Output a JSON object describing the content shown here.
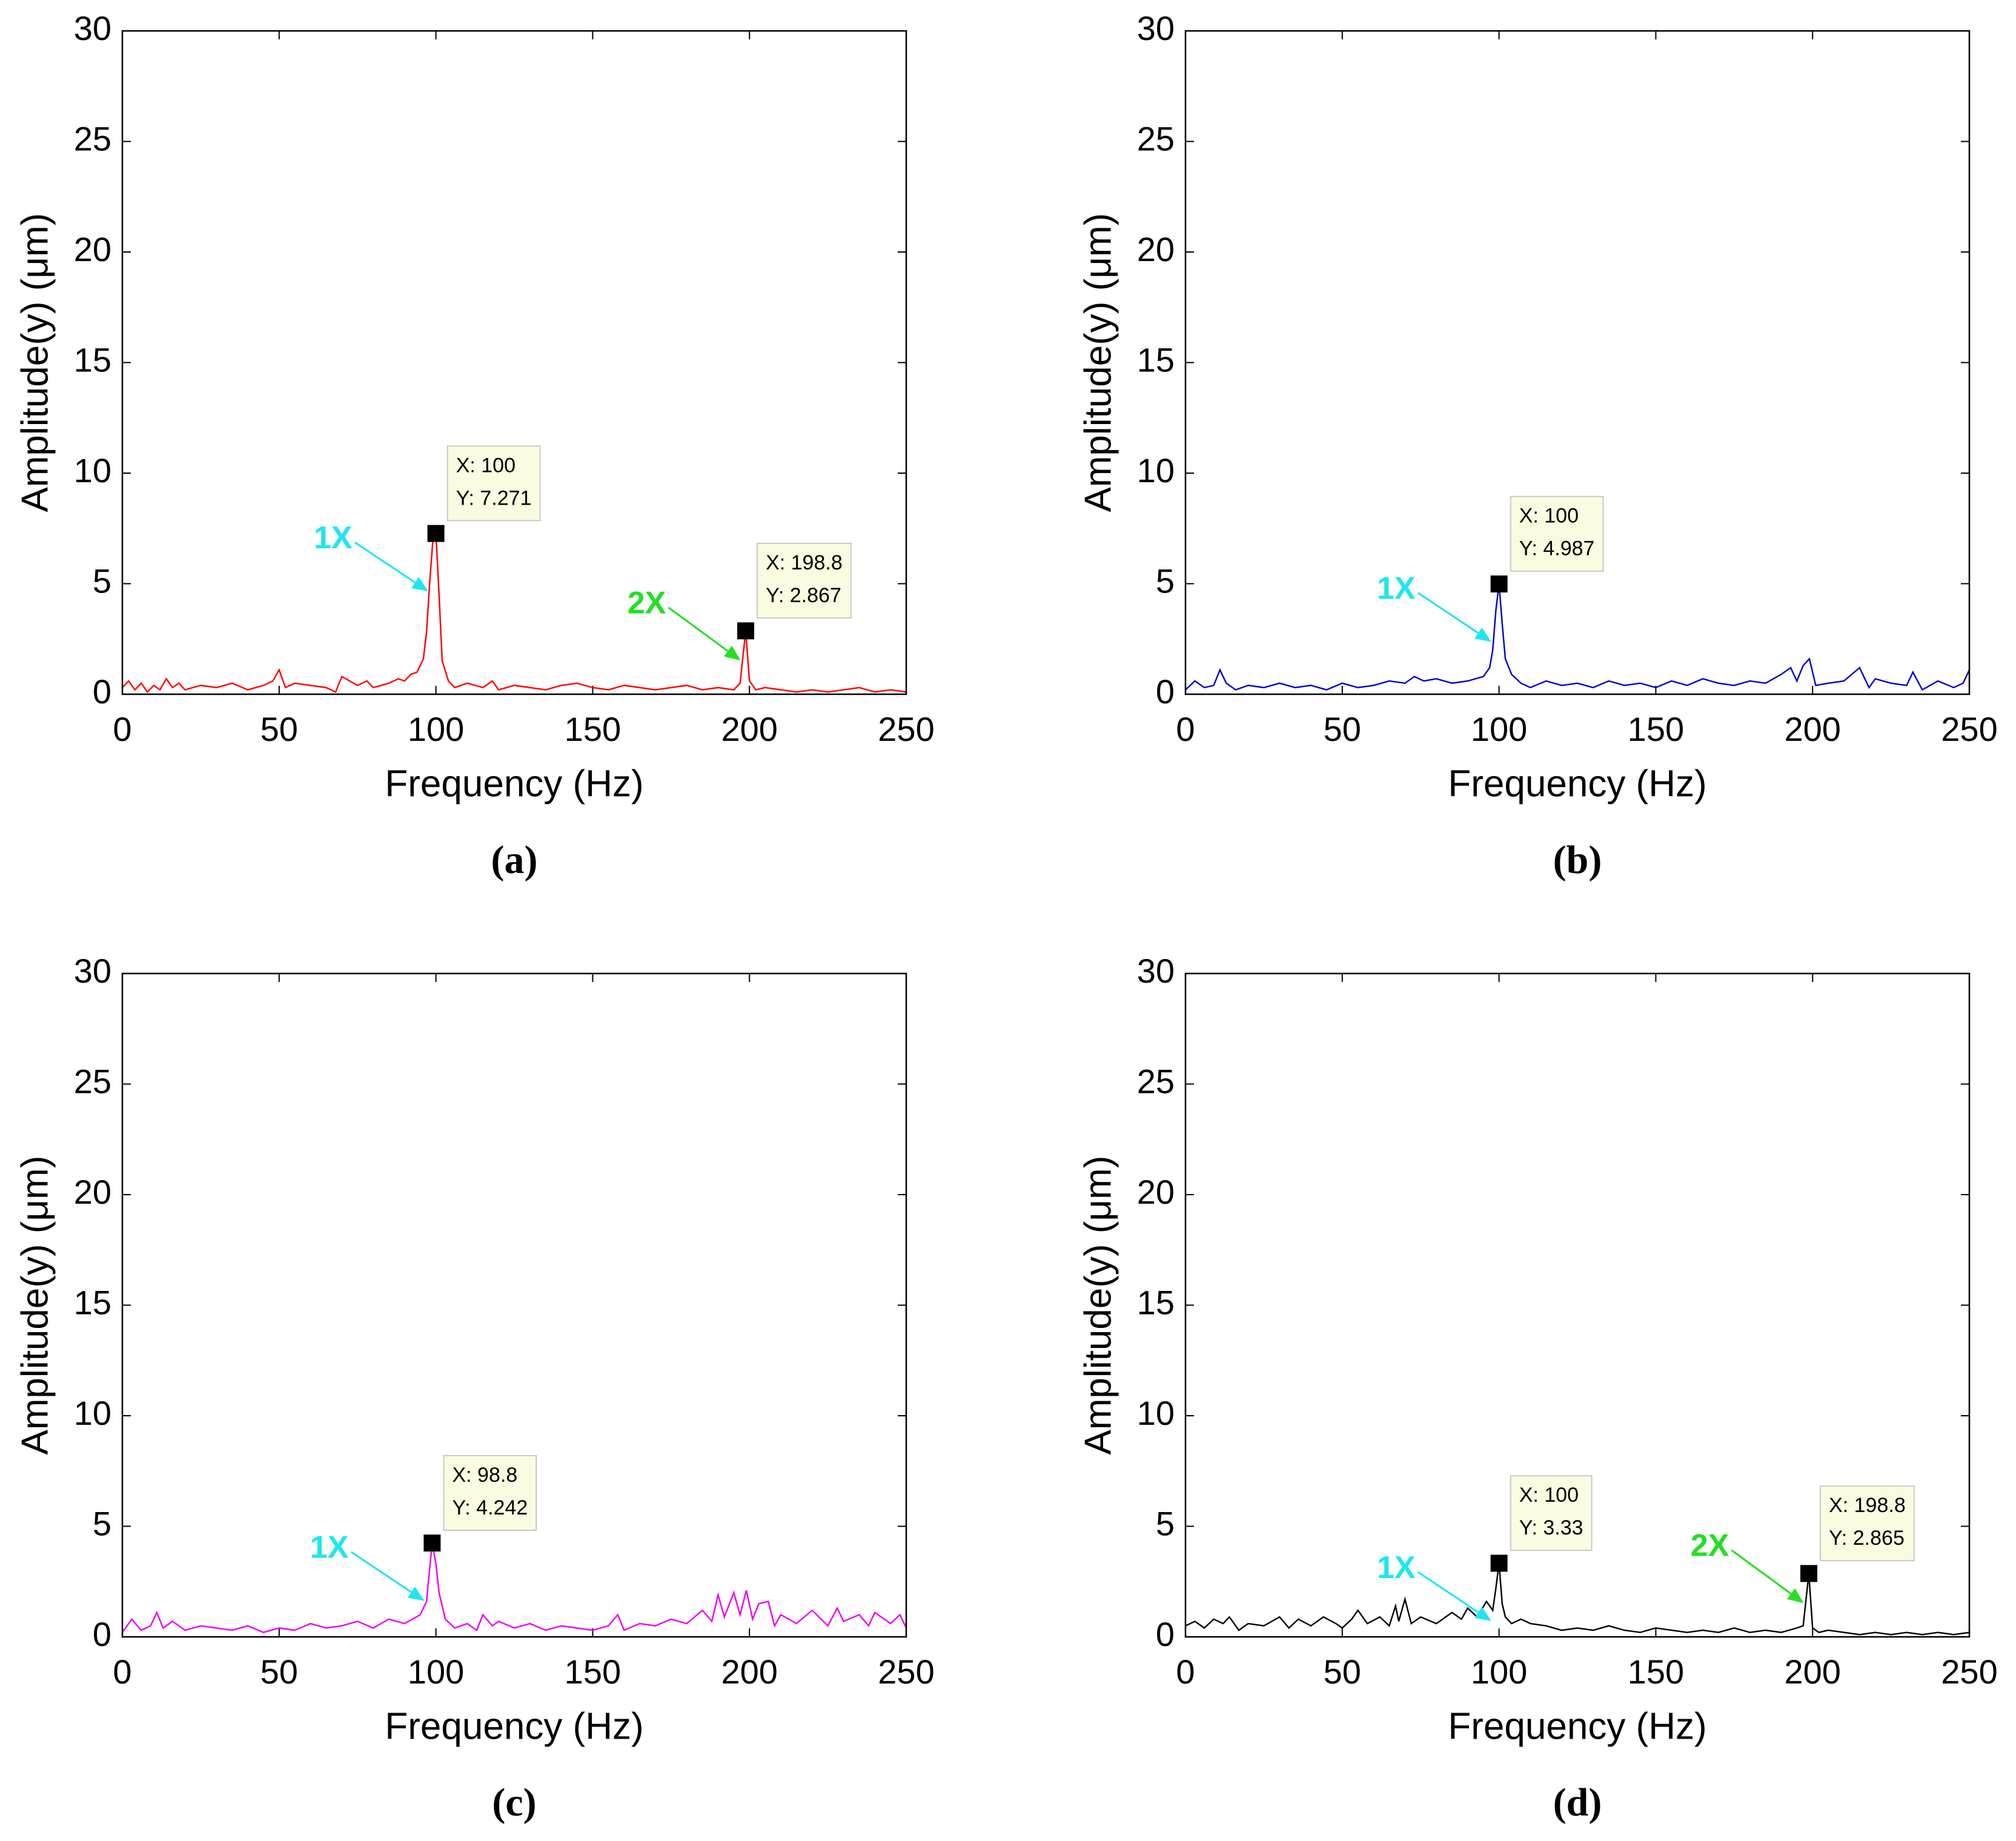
{
  "chart_data": [
    {
      "type": "line",
      "caption": "(a)",
      "xlabel": "Frequency (Hz)",
      "ylabel": "Amplitude(y) (μm)",
      "color": "#ff0000",
      "xlim": [
        0,
        250
      ],
      "xticks": [
        0,
        50,
        100,
        150,
        200,
        250
      ],
      "ylim": [
        0,
        30
      ],
      "yticks": [
        0,
        5,
        10,
        15,
        20,
        25,
        30
      ],
      "x": [
        0,
        2,
        4,
        6,
        8,
        10,
        12,
        14,
        16,
        18,
        20,
        25,
        30,
        35,
        40,
        45,
        48,
        50,
        52,
        55,
        60,
        65,
        68,
        70,
        75,
        78,
        80,
        85,
        88,
        90,
        92,
        94,
        96,
        97,
        98,
        99,
        100,
        101,
        102,
        104,
        106,
        110,
        115,
        118,
        120,
        125,
        130,
        135,
        140,
        145,
        150,
        155,
        160,
        165,
        170,
        175,
        180,
        185,
        190,
        195,
        197,
        198.8,
        200,
        202,
        205,
        210,
        215,
        220,
        225,
        230,
        235,
        240,
        245,
        250
      ],
      "values": [
        0.3,
        0.6,
        0.2,
        0.5,
        0.1,
        0.4,
        0.2,
        0.7,
        0.3,
        0.5,
        0.2,
        0.4,
        0.3,
        0.5,
        0.2,
        0.4,
        0.6,
        1.1,
        0.3,
        0.5,
        0.4,
        0.3,
        0.1,
        0.8,
        0.4,
        0.6,
        0.3,
        0.5,
        0.7,
        0.6,
        0.9,
        1.0,
        1.6,
        2.8,
        5.0,
        6.9,
        7.271,
        4.5,
        1.5,
        0.6,
        0.3,
        0.5,
        0.3,
        0.6,
        0.2,
        0.4,
        0.3,
        0.2,
        0.4,
        0.5,
        0.3,
        0.2,
        0.4,
        0.3,
        0.2,
        0.3,
        0.4,
        0.2,
        0.3,
        0.2,
        0.5,
        2.867,
        0.6,
        0.2,
        0.3,
        0.2,
        0.1,
        0.2,
        0.1,
        0.2,
        0.3,
        0.1,
        0.2,
        0.1
      ],
      "datatips": [
        {
          "x": 100,
          "y": 7.271,
          "x_label": "X: 100",
          "y_label": "Y: 7.271",
          "arrow_label": "1X",
          "arrow_color": "#1ee6f0"
        },
        {
          "x": 198.8,
          "y": 2.867,
          "x_label": "X: 198.8",
          "y_label": "Y: 2.867",
          "arrow_label": "2X",
          "arrow_color": "#22e022"
        }
      ]
    },
    {
      "type": "line",
      "caption": "(b)",
      "xlabel": "Frequency (Hz)",
      "ylabel": "Amplitude(y) (μm)",
      "color": "#0000cc",
      "xlim": [
        0,
        250
      ],
      "xticks": [
        0,
        50,
        100,
        150,
        200,
        250
      ],
      "ylim": [
        0,
        30
      ],
      "yticks": [
        0,
        5,
        10,
        15,
        20,
        25,
        30
      ],
      "x": [
        0,
        3,
        6,
        9,
        11,
        13,
        16,
        20,
        25,
        30,
        35,
        40,
        45,
        50,
        55,
        60,
        65,
        70,
        73,
        76,
        80,
        85,
        90,
        95,
        97,
        98,
        99,
        100,
        101,
        102,
        104,
        107,
        110,
        115,
        120,
        125,
        130,
        135,
        140,
        145,
        150,
        155,
        160,
        165,
        170,
        175,
        180,
        185,
        190,
        193,
        195,
        197,
        199,
        201,
        205,
        210,
        215,
        218,
        220,
        225,
        230,
        232,
        235,
        240,
        245,
        248,
        250
      ],
      "values": [
        0.2,
        0.6,
        0.3,
        0.4,
        1.1,
        0.5,
        0.2,
        0.4,
        0.3,
        0.5,
        0.3,
        0.4,
        0.2,
        0.5,
        0.3,
        0.4,
        0.6,
        0.5,
        0.8,
        0.6,
        0.7,
        0.5,
        0.6,
        0.8,
        1.2,
        2.0,
        3.8,
        4.987,
        3.2,
        1.6,
        0.9,
        0.5,
        0.3,
        0.6,
        0.4,
        0.5,
        0.3,
        0.6,
        0.4,
        0.5,
        0.3,
        0.6,
        0.4,
        0.7,
        0.5,
        0.4,
        0.6,
        0.5,
        0.9,
        1.2,
        0.6,
        1.3,
        1.6,
        0.4,
        0.5,
        0.6,
        1.2,
        0.3,
        0.7,
        0.5,
        0.4,
        1.0,
        0.2,
        0.6,
        0.3,
        0.5,
        1.1
      ],
      "datatips": [
        {
          "x": 100,
          "y": 4.987,
          "x_label": "X: 100",
          "y_label": "Y: 4.987",
          "arrow_label": "1X",
          "arrow_color": "#1ee6f0"
        }
      ]
    },
    {
      "type": "line",
      "caption": "(c)",
      "xlabel": "Frequency (Hz)",
      "ylabel": "Amplitude(y) (μm)",
      "color": "#ee00ee",
      "xlim": [
        0,
        250
      ],
      "xticks": [
        0,
        50,
        100,
        150,
        200,
        250
      ],
      "ylim": [
        0,
        30
      ],
      "yticks": [
        0,
        5,
        10,
        15,
        20,
        25,
        30
      ],
      "x": [
        0,
        3,
        6,
        9,
        11,
        13,
        16,
        20,
        25,
        30,
        35,
        40,
        45,
        50,
        55,
        60,
        65,
        70,
        75,
        80,
        85,
        90,
        95,
        97,
        98.8,
        100,
        101,
        103,
        106,
        110,
        113,
        115,
        118,
        120,
        125,
        130,
        135,
        140,
        145,
        150,
        155,
        158,
        160,
        165,
        170,
        175,
        180,
        185,
        188,
        190,
        192,
        195,
        197,
        199,
        201,
        203,
        206,
        208,
        210,
        215,
        220,
        225,
        228,
        230,
        235,
        238,
        240,
        245,
        248,
        250
      ],
      "values": [
        0.2,
        0.8,
        0.3,
        0.5,
        1.1,
        0.4,
        0.7,
        0.3,
        0.5,
        0.4,
        0.3,
        0.5,
        0.2,
        0.4,
        0.3,
        0.6,
        0.4,
        0.5,
        0.7,
        0.4,
        0.8,
        0.6,
        1.0,
        1.6,
        4.242,
        3.3,
        2.0,
        0.8,
        0.4,
        0.6,
        0.3,
        1.0,
        0.5,
        0.7,
        0.4,
        0.6,
        0.3,
        0.5,
        0.4,
        0.3,
        0.5,
        1.0,
        0.3,
        0.6,
        0.5,
        0.8,
        0.6,
        1.2,
        0.7,
        1.9,
        0.9,
        2.0,
        1.0,
        2.1,
        0.8,
        1.5,
        1.6,
        0.5,
        1.0,
        0.6,
        1.2,
        0.5,
        1.3,
        0.7,
        1.0,
        0.5,
        1.1,
        0.6,
        1.0,
        0.4
      ],
      "datatips": [
        {
          "x": 98.8,
          "y": 4.242,
          "x_label": "X: 98.8",
          "y_label": "Y: 4.242",
          "arrow_label": "1X",
          "arrow_color": "#1ee6f0"
        }
      ]
    },
    {
      "type": "line",
      "caption": "(d)",
      "xlabel": "Frequency (Hz)",
      "ylabel": "Amplitude(y) (μm)",
      "color": "#000000",
      "xlim": [
        0,
        250
      ],
      "xticks": [
        0,
        50,
        100,
        150,
        200,
        250
      ],
      "ylim": [
        0,
        30
      ],
      "yticks": [
        0,
        5,
        10,
        15,
        20,
        25,
        30
      ],
      "x": [
        0,
        3,
        6,
        9,
        12,
        14,
        17,
        20,
        25,
        30,
        33,
        36,
        40,
        44,
        48,
        50,
        53,
        55,
        58,
        62,
        65,
        67,
        68,
        70,
        72,
        75,
        80,
        85,
        88,
        90,
        93,
        96,
        98,
        99,
        100,
        101,
        102,
        104,
        107,
        110,
        115,
        120,
        125,
        130,
        135,
        140,
        145,
        150,
        155,
        160,
        165,
        170,
        175,
        180,
        185,
        190,
        195,
        197,
        198.8,
        200,
        202,
        205,
        210,
        215,
        220,
        225,
        230,
        235,
        240,
        245,
        250
      ],
      "values": [
        0.5,
        0.7,
        0.4,
        0.8,
        0.6,
        0.9,
        0.3,
        0.6,
        0.5,
        0.9,
        0.4,
        0.8,
        0.5,
        0.9,
        0.6,
        0.4,
        0.8,
        1.2,
        0.6,
        0.9,
        0.5,
        1.4,
        0.7,
        1.7,
        0.6,
        0.9,
        0.6,
        1.1,
        0.8,
        1.3,
        0.9,
        1.6,
        1.2,
        2.2,
        3.33,
        1.5,
        0.9,
        0.6,
        0.8,
        0.6,
        0.5,
        0.3,
        0.4,
        0.3,
        0.5,
        0.3,
        0.2,
        0.4,
        0.3,
        0.2,
        0.3,
        0.2,
        0.4,
        0.2,
        0.3,
        0.2,
        0.4,
        0.5,
        2.865,
        0.4,
        0.2,
        0.3,
        0.2,
        0.1,
        0.2,
        0.1,
        0.2,
        0.1,
        0.2,
        0.1,
        0.2
      ],
      "datatips": [
        {
          "x": 100,
          "y": 3.33,
          "x_label": "X: 100",
          "y_label": "Y: 3.33",
          "arrow_label": "1X",
          "arrow_color": "#1ee6f0"
        },
        {
          "x": 198.8,
          "y": 2.865,
          "x_label": "X: 198.8",
          "y_label": "Y: 2.865",
          "arrow_label": "2X",
          "arrow_color": "#22e022"
        }
      ]
    }
  ]
}
